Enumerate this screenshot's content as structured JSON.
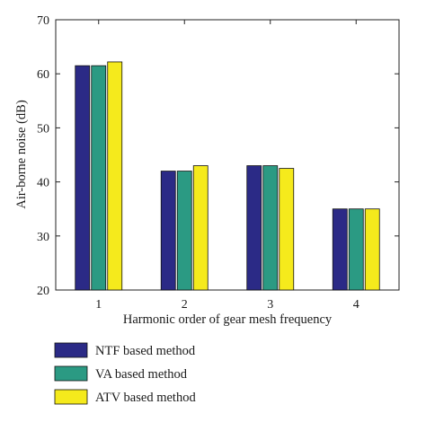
{
  "chart_data": {
    "type": "bar",
    "categories": [
      "1",
      "2",
      "3",
      "4"
    ],
    "series": [
      {
        "name": "NTF based method",
        "values": [
          61.5,
          42.0,
          43.0,
          35.0
        ],
        "color": "#2b2a86"
      },
      {
        "name": "VA based method",
        "values": [
          61.5,
          42.0,
          43.0,
          35.0
        ],
        "color": "#2b9a83"
      },
      {
        "name": "ATV based method",
        "values": [
          62.2,
          43.0,
          42.5,
          35.0
        ],
        "color": "#f5ea1c"
      }
    ],
    "xlabel": "Harmonic order of gear mesh frequency",
    "ylabel": "Air-borne noise (dB)",
    "ylim": [
      20,
      70
    ],
    "yticks": [
      20,
      30,
      40,
      50,
      60,
      70
    ],
    "grid": false,
    "legend_position": "bottom-left-outside"
  }
}
